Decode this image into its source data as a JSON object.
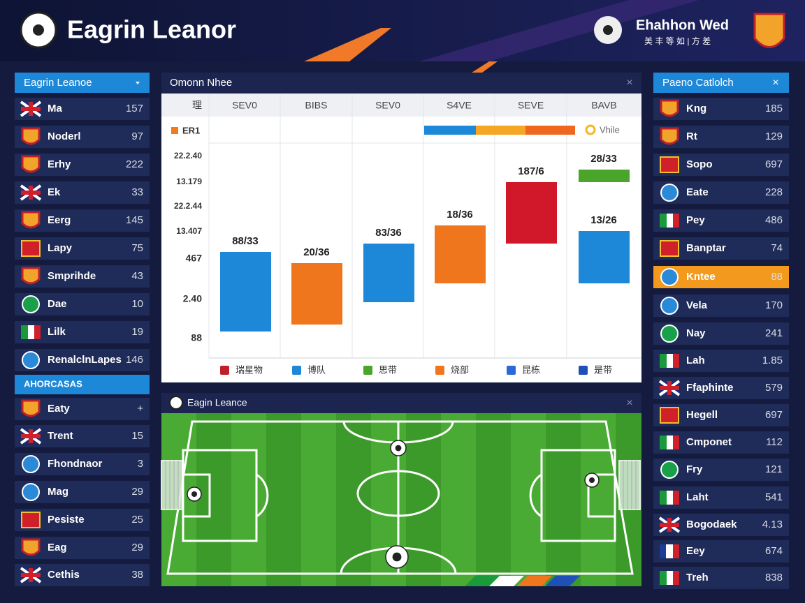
{
  "header": {
    "title": "Eagrin Leanor",
    "brand": "Ehahhon Wed",
    "brand_sub": "美 丰 等   如 | 方 差"
  },
  "left_panel": {
    "title": "Eagrin Leanoe",
    "rows": [
      {
        "name": "Ma",
        "value": 157
      },
      {
        "name": "Noderl",
        "value": 97
      },
      {
        "name": "Erhy",
        "value": 222
      },
      {
        "name": "Ek",
        "value": 33
      },
      {
        "name": "Eerg",
        "value": 145
      },
      {
        "name": "Lapy",
        "value": 75
      },
      {
        "name": "Smprihde",
        "value": 43
      },
      {
        "name": "Dae",
        "value": 10
      },
      {
        "name": "Lilk",
        "value": 19
      },
      {
        "name": "RenalclnLapes",
        "value": 146
      }
    ],
    "section": "AHORCASAS",
    "section_rows": [
      {
        "name": "Eaty",
        "value": "+"
      },
      {
        "name": "Trent",
        "value": 15
      },
      {
        "name": "Fhondnaor",
        "value": 3
      },
      {
        "name": "Mag",
        "value": 29
      },
      {
        "name": "Pesiste",
        "value": 25
      },
      {
        "name": "Eag",
        "value": 29
      },
      {
        "name": "Cethis",
        "value": 38
      }
    ]
  },
  "right_panel": {
    "title": "Paeno Catlolch",
    "rows": [
      {
        "name": "Kng",
        "value": 185
      },
      {
        "name": "Rt",
        "value": 129
      },
      {
        "name": "Sopo",
        "value": 697
      },
      {
        "name": "Eate",
        "value": 228
      },
      {
        "name": "Pey",
        "value": 486
      },
      {
        "name": "Banptar",
        "value": 74
      },
      {
        "name": "Kntee",
        "value": 88
      },
      {
        "name": "Vela",
        "value": 170
      },
      {
        "name": "Nay",
        "value": 241
      },
      {
        "name": "Lah",
        "value": 1.85
      },
      {
        "name": "Ffaphinte",
        "value": 579
      },
      {
        "name": "Hegell",
        "value": 697
      },
      {
        "name": "Cmponet",
        "value": 112
      },
      {
        "name": "Fry",
        "value": 121
      },
      {
        "name": "Laht",
        "value": 541
      },
      {
        "name": "Bogodaek",
        "value": 4.13
      },
      {
        "name": "Eey",
        "value": 674
      },
      {
        "name": "Treh",
        "value": 838
      }
    ]
  },
  "chart_panel": {
    "title": "Omonn Nhee",
    "columns": [
      "理",
      "SEV0",
      "BIBS",
      "SEV0",
      "S4VE",
      "SEVE",
      "BAVB"
    ],
    "legend_label": "ER1",
    "color_bar_label": "Vhile",
    "y_labels": [
      "22.2.40",
      "13.179",
      "22.2.44",
      "13.407",
      "467",
      "2.40",
      "88"
    ],
    "bar_labels": [
      "88/33",
      "20/36",
      "83/36",
      "18/36",
      "187/6",
      "28/33",
      "13/26"
    ],
    "footer_items": [
      "瑞星物",
      "博队",
      "思带",
      "烧部",
      "昆栋",
      "是带"
    ]
  },
  "pitch_panel": {
    "title": "Eagin Leance"
  }
}
